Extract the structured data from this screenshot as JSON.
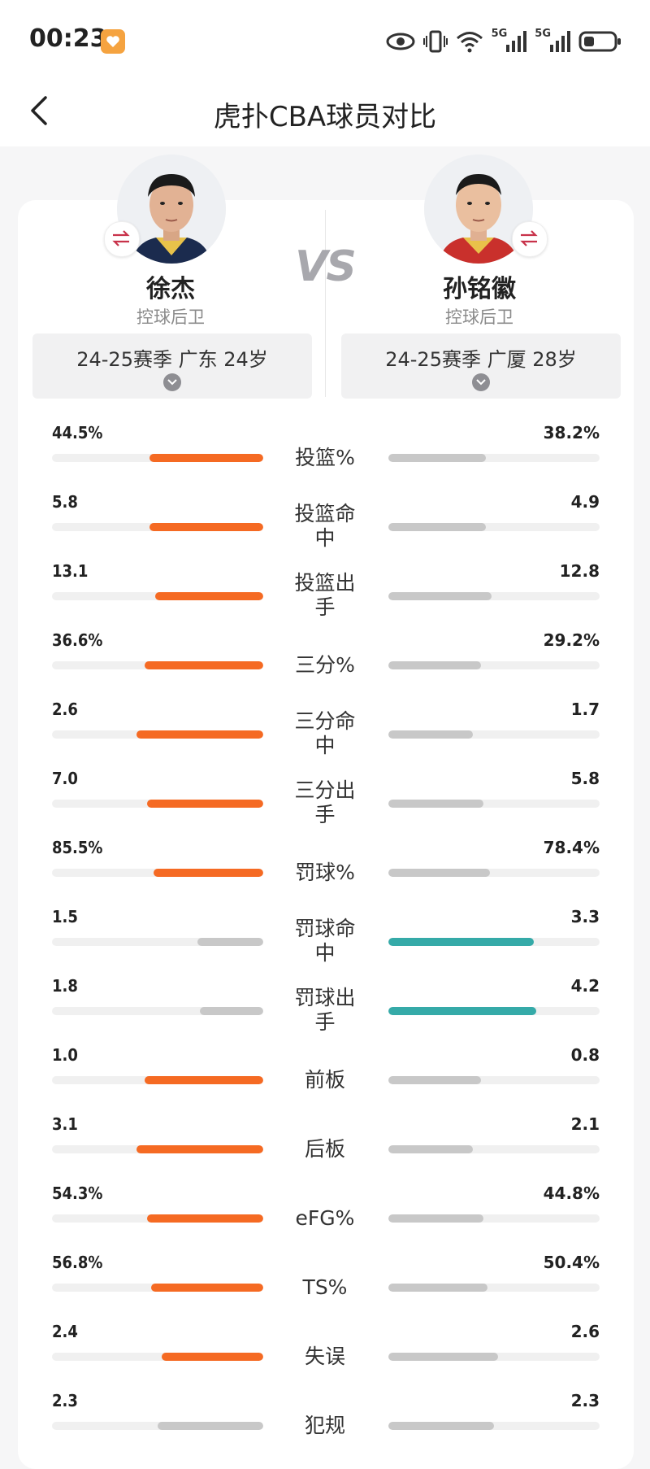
{
  "status": {
    "time": "00:23",
    "net1": "5G",
    "net2": "5G"
  },
  "nav": {
    "title": "虎扑CBA球员对比"
  },
  "players": {
    "left": {
      "name": "徐杰",
      "position": "控球后卫",
      "season": "24-25赛季 广东 24岁"
    },
    "right": {
      "name": "孙铭徽",
      "position": "控球后卫",
      "season": "24-25赛季 广厦 28岁"
    }
  },
  "vs": "VS",
  "colors": {
    "better": "#f56a23",
    "better_right": "#35aaa8",
    "worse": "#c8c8c8"
  },
  "stats": [
    {
      "label": "投篮%",
      "left": "44.5%",
      "right": "38.2%",
      "lf": 0.54,
      "rf": 0.46,
      "win": "left"
    },
    {
      "label": "投篮命中",
      "left": "5.8",
      "right": "4.9",
      "lf": 0.54,
      "rf": 0.46,
      "win": "left"
    },
    {
      "label": "投篮出手",
      "left": "13.1",
      "right": "12.8",
      "lf": 0.51,
      "rf": 0.49,
      "win": "left"
    },
    {
      "label": "三分%",
      "left": "36.6%",
      "right": "29.2%",
      "lf": 0.56,
      "rf": 0.44,
      "win": "left"
    },
    {
      "label": "三分命中",
      "left": "2.6",
      "right": "1.7",
      "lf": 0.6,
      "rf": 0.4,
      "win": "left"
    },
    {
      "label": "三分出手",
      "left": "7.0",
      "right": "5.8",
      "lf": 0.55,
      "rf": 0.45,
      "win": "left"
    },
    {
      "label": "罚球%",
      "left": "85.5%",
      "right": "78.4%",
      "lf": 0.52,
      "rf": 0.48,
      "win": "left"
    },
    {
      "label": "罚球命中",
      "left": "1.5",
      "right": "3.3",
      "lf": 0.31,
      "rf": 0.69,
      "win": "right"
    },
    {
      "label": "罚球出手",
      "left": "1.8",
      "right": "4.2",
      "lf": 0.3,
      "rf": 0.7,
      "win": "right"
    },
    {
      "label": "前板",
      "left": "1.0",
      "right": "0.8",
      "lf": 0.56,
      "rf": 0.44,
      "win": "left"
    },
    {
      "label": "后板",
      "left": "3.1",
      "right": "2.1",
      "lf": 0.6,
      "rf": 0.4,
      "win": "left"
    },
    {
      "label": "eFG%",
      "left": "54.3%",
      "right": "44.8%",
      "lf": 0.55,
      "rf": 0.45,
      "win": "left"
    },
    {
      "label": "TS%",
      "left": "56.8%",
      "right": "50.4%",
      "lf": 0.53,
      "rf": 0.47,
      "win": "left"
    },
    {
      "label": "失误",
      "left": "2.4",
      "right": "2.6",
      "lf": 0.48,
      "rf": 0.52,
      "win": "left"
    },
    {
      "label": "犯规",
      "left": "2.3",
      "right": "2.3",
      "lf": 0.5,
      "rf": 0.5,
      "win": "none"
    }
  ]
}
